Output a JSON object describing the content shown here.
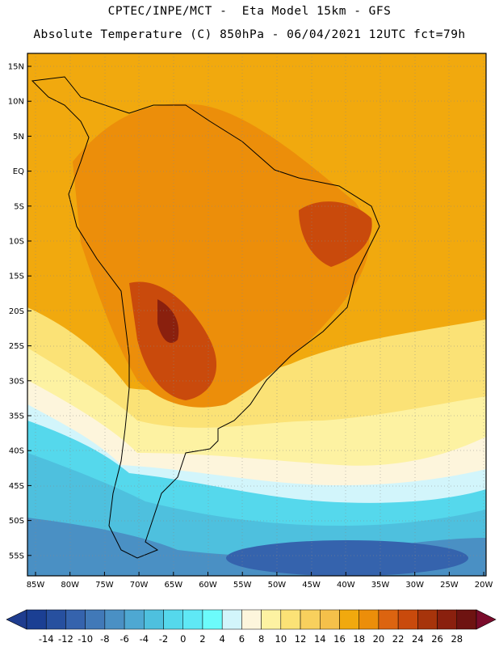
{
  "header": {
    "line1": "CPTEC/INPE/MCT -  Eta Model 15km - GFS",
    "line2": "Absolute Temperature (C) 850hPa - 06/04/2021 12UTC fct=79h"
  },
  "map": {
    "variable": "Absolute Temperature (C) 850hPa",
    "lat_labels": [
      "15N",
      "10N",
      "5N",
      "EQ",
      "5S",
      "10S",
      "15S",
      "20S",
      "25S",
      "30S",
      "35S",
      "40S",
      "45S",
      "50S",
      "55S"
    ],
    "lon_labels": [
      "85W",
      "80W",
      "75W",
      "70W",
      "65W",
      "60W",
      "55W",
      "50W",
      "45W",
      "40W",
      "35W",
      "30W",
      "25W",
      "20W"
    ]
  },
  "colorbar": {
    "labels": [
      "-14",
      "-12",
      "-10",
      "-8",
      "-6",
      "-4",
      "-2",
      "0",
      "2",
      "4",
      "6",
      "8",
      "10",
      "12",
      "14",
      "16",
      "18",
      "20",
      "22",
      "24",
      "26",
      "28"
    ],
    "colors": [
      "#1b3f93",
      "#27509f",
      "#3563ad",
      "#4179b8",
      "#4a90c4",
      "#4ea8d2",
      "#4ec0de",
      "#55d8ec",
      "#5fe8f5",
      "#6cfbfb",
      "#d2f5fb",
      "#fdf5dc",
      "#fdf2a2",
      "#fbe276",
      "#f8d05d",
      "#f5c04a",
      "#f1a90e",
      "#ec8e0a",
      "#dc6410",
      "#c94a0c",
      "#a7340b",
      "#8a200e",
      "#6e1311"
    ],
    "under_color": "#1f3d8f",
    "over_color": "#7a0b2b"
  }
}
